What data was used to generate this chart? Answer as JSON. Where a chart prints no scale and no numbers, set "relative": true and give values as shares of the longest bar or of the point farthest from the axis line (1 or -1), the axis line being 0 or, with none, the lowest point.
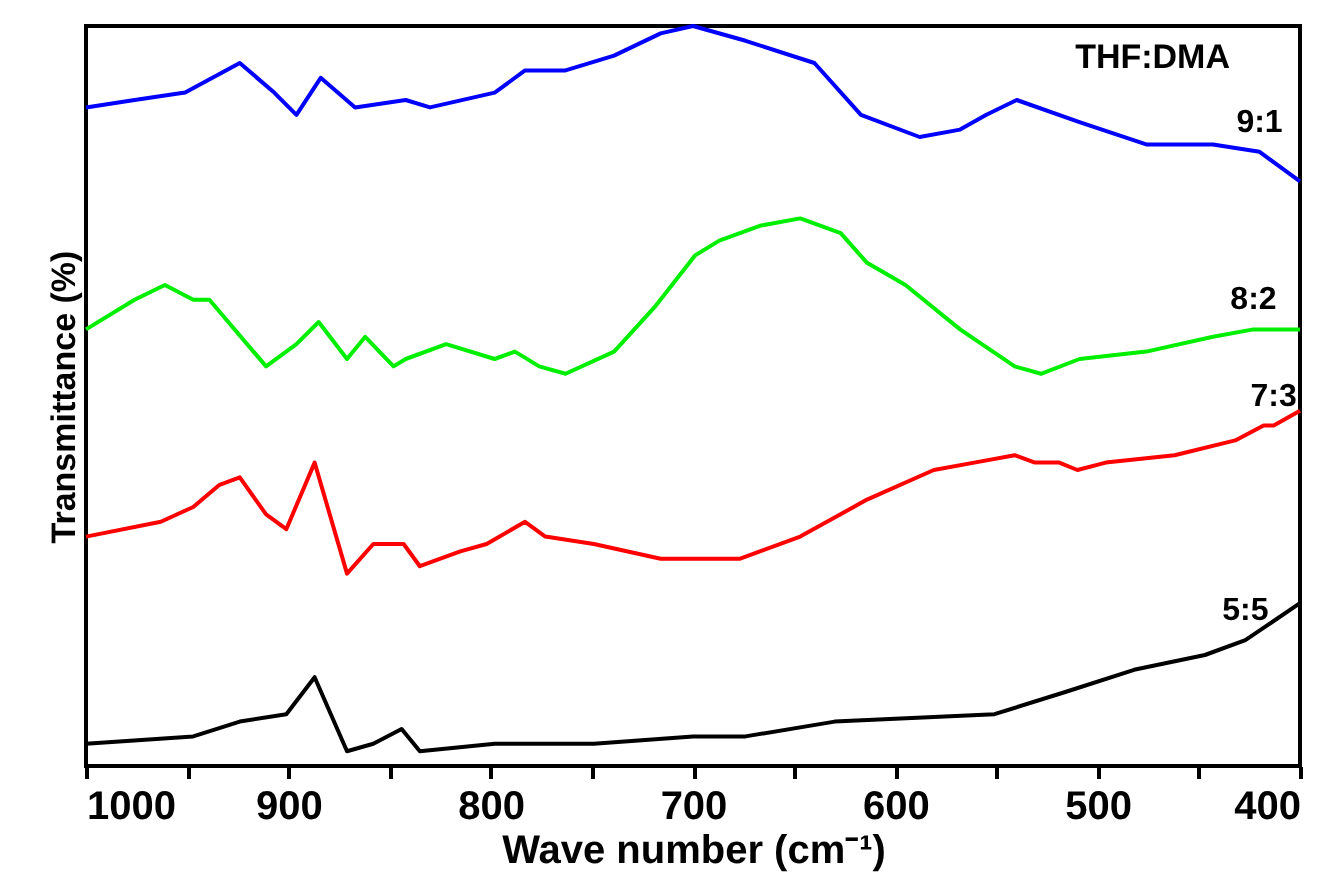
{
  "chart_data": {
    "type": "line",
    "relative": true,
    "xlabel": "Wave number (cm⁻¹)",
    "ylabel": "Transmittance (%)",
    "annotations": [
      "THF:DMA"
    ],
    "xlim": [
      1000,
      400
    ],
    "xticks": [
      1000,
      {
        "value": 950,
        "label": null
      },
      900,
      {
        "value": 850,
        "label": null
      },
      800,
      {
        "value": 750,
        "label": null
      },
      700,
      {
        "value": 650,
        "label": null
      },
      600,
      {
        "value": 550,
        "label": null
      },
      500,
      {
        "value": 450,
        "label": null
      },
      400
    ],
    "grid": false,
    "line_style": "solid",
    "series": [
      {
        "name": "9:1",
        "color": "#0000ff",
        "x": [
          1000,
          976,
          951,
          924,
          907,
          896,
          884,
          867,
          842,
          830,
          798,
          783,
          763,
          739,
          716,
          700,
          674,
          640,
          617,
          588,
          568,
          555,
          540,
          509,
          476,
          443,
          420,
          400
        ],
        "values": [
          0.89,
          0.9,
          0.91,
          0.95,
          0.91,
          0.88,
          0.93,
          0.89,
          0.9,
          0.89,
          0.91,
          0.94,
          0.94,
          0.96,
          0.99,
          1.0,
          0.98,
          0.95,
          0.88,
          0.85,
          0.86,
          0.88,
          0.9,
          0.87,
          0.84,
          0.84,
          0.83,
          0.79
        ]
      },
      {
        "name": "8:2",
        "color": "#00ee00",
        "x": [
          1000,
          976,
          961,
          947,
          939,
          911,
          896,
          885,
          871,
          862,
          848,
          842,
          822,
          798,
          788,
          776,
          763,
          739,
          719,
          699,
          687,
          667,
          647,
          627,
          614,
          595,
          568,
          541,
          528,
          509,
          476,
          443,
          423,
          400
        ],
        "values": [
          0.59,
          0.63,
          0.65,
          0.63,
          0.63,
          0.54,
          0.57,
          0.6,
          0.55,
          0.58,
          0.54,
          0.55,
          0.57,
          0.55,
          0.56,
          0.54,
          0.53,
          0.56,
          0.62,
          0.69,
          0.71,
          0.73,
          0.74,
          0.72,
          0.68,
          0.65,
          0.59,
          0.54,
          0.53,
          0.55,
          0.56,
          0.58,
          0.59,
          0.59
        ]
      },
      {
        "name": "7:3",
        "color": "#ff0000",
        "x": [
          1000,
          963,
          947,
          934,
          924,
          911,
          901,
          887,
          871,
          858,
          843,
          835,
          815,
          802,
          783,
          773,
          749,
          716,
          697,
          677,
          647,
          614,
          581,
          561,
          541,
          531,
          519,
          510,
          496,
          462,
          432,
          418,
          413,
          400
        ],
        "values": [
          0.31,
          0.33,
          0.35,
          0.38,
          0.39,
          0.34,
          0.32,
          0.41,
          0.26,
          0.3,
          0.3,
          0.27,
          0.29,
          0.3,
          0.33,
          0.31,
          0.3,
          0.28,
          0.28,
          0.28,
          0.31,
          0.36,
          0.4,
          0.41,
          0.42,
          0.41,
          0.41,
          0.4,
          0.41,
          0.42,
          0.44,
          0.46,
          0.46,
          0.48
        ]
      },
      {
        "name": "5:5",
        "color": "#000000",
        "x": [
          1000,
          947,
          924,
          901,
          887,
          871,
          858,
          844,
          835,
          798,
          749,
          700,
          674,
          630,
          551,
          516,
          482,
          447,
          427,
          400
        ],
        "values": [
          0.03,
          0.04,
          0.06,
          0.07,
          0.12,
          0.02,
          0.03,
          0.05,
          0.02,
          0.03,
          0.03,
          0.04,
          0.04,
          0.06,
          0.07,
          0.1,
          0.13,
          0.15,
          0.17,
          0.22
        ]
      }
    ]
  }
}
